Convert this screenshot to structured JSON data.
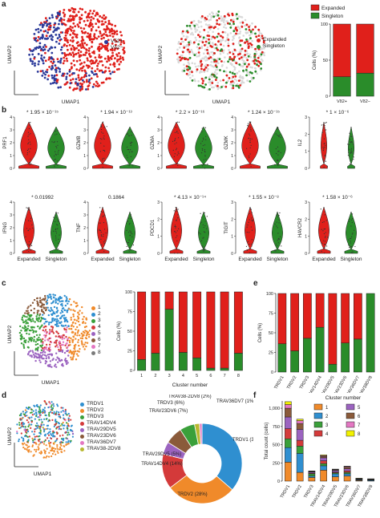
{
  "panels": {
    "a": "a",
    "b": "b",
    "c": "c",
    "d": "d",
    "e": "e",
    "f": "f"
  },
  "umap": {
    "xlabel": "UMAP1",
    "ylabel": "UMAP2"
  },
  "a_legend1": [
    {
      "label": "Vδ2+",
      "color": "#2b3a9a"
    },
    {
      "label": "Vδ2−",
      "color": "#e0201b"
    }
  ],
  "a_legend2": [
    {
      "label": "Expanded",
      "color": "#e0201b"
    },
    {
      "label": "Singleton",
      "color": "#2a8c2a"
    }
  ],
  "c_legend": [
    {
      "label": "1",
      "color": "#f08a2a"
    },
    {
      "label": "2",
      "color": "#2f8fd0"
    },
    {
      "label": "3",
      "color": "#3aa03a"
    },
    {
      "label": "4",
      "color": "#d43a3a"
    },
    {
      "label": "5",
      "color": "#9b63c0"
    },
    {
      "label": "6",
      "color": "#8a5a3a"
    },
    {
      "label": "7",
      "color": "#e377c2"
    },
    {
      "label": "8",
      "color": "#7a7a7a"
    }
  ],
  "d_legend": [
    {
      "label": "TRDV1",
      "color": "#2f8fd0"
    },
    {
      "label": "TRDV2",
      "color": "#f08a2a"
    },
    {
      "label": "TRDV3",
      "color": "#3aa03a"
    },
    {
      "label": "TRAV14DV4",
      "color": "#d43a3a"
    },
    {
      "label": "TRAV29DV5",
      "color": "#9b63c0"
    },
    {
      "label": "TRAV23DV6",
      "color": "#8a5a3a"
    },
    {
      "label": "TRAV36DV7",
      "color": "#e377c2"
    },
    {
      "label": "TRAV38-2DV8",
      "color": "#b8b830"
    }
  ],
  "violin": {
    "row1": [
      {
        "gene": "PRF1",
        "p": "* 1.95 × 10⁻¹⁵",
        "ymax": 4,
        "ticks": [
          0,
          1,
          2,
          3,
          4
        ]
      },
      {
        "gene": "GZMB",
        "p": "* 1.94 × 10⁻¹³",
        "ymax": 4,
        "ticks": [
          0,
          1,
          2,
          3,
          4
        ]
      },
      {
        "gene": "GZMA",
        "p": "* 2.2 × 10⁻¹⁶",
        "ymax": 4,
        "ticks": [
          0,
          1,
          2,
          3,
          4
        ]
      },
      {
        "gene": "GZMK",
        "p": "* 1.24 × 10⁻¹⁵",
        "ymax": 4,
        "ticks": [
          0,
          1,
          2,
          3,
          4
        ]
      },
      {
        "gene": "IL2",
        "p": "* 1 × 10⁻⁶",
        "ymax": 3,
        "ticks": [
          0,
          1,
          2,
          3
        ]
      }
    ],
    "row2": [
      {
        "gene": "IFNG",
        "p": "* 0.01992",
        "ymax": 4,
        "ticks": [
          0,
          1,
          2,
          3,
          4
        ]
      },
      {
        "gene": "TNF",
        "p": "0.1864",
        "ymax": 4,
        "ticks": [
          0,
          1,
          2,
          3,
          4
        ]
      },
      {
        "gene": "PDCD1",
        "p": "* 4.13 × 10⁻¹⁴",
        "ymax": 3,
        "ticks": [
          0,
          1,
          2,
          3
        ]
      },
      {
        "gene": "TIGIT",
        "p": "* 1.55 × 10⁻⁸",
        "ymax": 3,
        "ticks": [
          0,
          1,
          2,
          3
        ]
      },
      {
        "gene": "HAVCR2",
        "p": "* 1.58 × 10⁻⁶",
        "ymax": 3,
        "ticks": [
          0,
          1,
          2,
          3
        ]
      }
    ],
    "groups": [
      "Expanded",
      "Singleton"
    ]
  },
  "chart_data": [
    {
      "type": "bar",
      "id": "a_stack",
      "stacked": true,
      "categories": [
        "Vδ2+",
        "Vδ2−"
      ],
      "series": [
        {
          "name": "Singleton",
          "values": [
            27,
            32
          ],
          "color": "#2a8c2a"
        },
        {
          "name": "Expanded",
          "values": [
            73,
            68
          ],
          "color": "#e0201b"
        }
      ],
      "ylabel": "Cells (%)",
      "ylim": [
        0,
        100
      ],
      "yticks": [
        0,
        50,
        100
      ]
    },
    {
      "type": "bar",
      "id": "c_stack",
      "stacked": true,
      "categories": [
        "1",
        "2",
        "3",
        "4",
        "5",
        "6",
        "7",
        "8"
      ],
      "series": [
        {
          "name": "Singleton",
          "values": [
            14,
            22,
            78,
            23,
            16,
            3,
            3,
            22
          ],
          "color": "#2a8c2a"
        },
        {
          "name": "Expanded",
          "values": [
            86,
            78,
            22,
            77,
            84,
            97,
            97,
            78
          ],
          "color": "#e0201b"
        }
      ],
      "xlabel": "Cluster number",
      "ylabel": "Cells (%)",
      "ylim": [
        0,
        100
      ],
      "yticks": [
        0,
        25,
        50,
        75,
        100
      ]
    },
    {
      "type": "bar",
      "id": "e_stack",
      "stacked": true,
      "categories": [
        "TRDV1",
        "TRDV2",
        "TRDV3",
        "TRAV14DV4",
        "TRAV29DV5",
        "TRAV23DV6",
        "TRAV36DV7",
        "TRAV38DV8"
      ],
      "series": [
        {
          "name": "Singleton",
          "values": [
            36,
            27,
            43,
            57,
            10,
            37,
            42,
            100
          ],
          "color": "#2a8c2a"
        },
        {
          "name": "Expanded",
          "values": [
            64,
            73,
            57,
            43,
            90,
            63,
            58,
            0
          ],
          "color": "#e0201b"
        }
      ],
      "ylabel": "Cells (%)",
      "ylim": [
        0,
        100
      ],
      "yticks": [
        0,
        25,
        50,
        75,
        100
      ]
    },
    {
      "type": "pie",
      "id": "d_donut",
      "slices": [
        {
          "label": "TRDV1 (36%)",
          "value": 36,
          "color": "#2f8fd0"
        },
        {
          "label": "TRDV2 (28%)",
          "value": 28,
          "color": "#f08a2a"
        },
        {
          "label": "TRAV14DV4 (14%)",
          "value": 14,
          "color": "#d43a3a"
        },
        {
          "label": "TRAV29DV5 (5%)",
          "value": 5,
          "color": "#9b63c0"
        },
        {
          "label": "TRAV23DV6 (7%)",
          "value": 7,
          "color": "#8a5a3a"
        },
        {
          "label": "TRDV3 (6%)",
          "value": 6,
          "color": "#3aa03a"
        },
        {
          "label": "TRAV38-2DV8 (2%)",
          "value": 2,
          "color": "#b8b830"
        },
        {
          "label": "TRAV36DV7 (1%)",
          "value": 1,
          "color": "#e377c2"
        }
      ]
    },
    {
      "type": "bar",
      "id": "f_stack",
      "stacked": true,
      "title": "Cluster number",
      "categories": [
        "TRDV1",
        "TRDV2",
        "TRDV3",
        "TRAV14DV4",
        "TRAV29DV5",
        "TRAV23DV6",
        "TRAV36DV7",
        "TRAV38DV8"
      ],
      "series": [
        {
          "name": "1",
          "values": [
            260,
            120,
            50,
            150,
            60,
            70,
            10,
            5
          ],
          "color": "#f08a2a"
        },
        {
          "name": "2",
          "values": [
            200,
            260,
            20,
            60,
            40,
            30,
            8,
            10
          ],
          "color": "#2f8fd0"
        },
        {
          "name": "3",
          "values": [
            120,
            100,
            30,
            30,
            15,
            20,
            5,
            5
          ],
          "color": "#3aa03a"
        },
        {
          "name": "4",
          "values": [
            140,
            80,
            10,
            40,
            10,
            20,
            4,
            3
          ],
          "color": "#d43a3a"
        },
        {
          "name": "5",
          "values": [
            160,
            150,
            15,
            40,
            20,
            30,
            6,
            4
          ],
          "color": "#9b63c0"
        },
        {
          "name": "6",
          "values": [
            120,
            80,
            5,
            20,
            10,
            20,
            2,
            2
          ],
          "color": "#8a5a3a"
        },
        {
          "name": "7",
          "values": [
            50,
            40,
            5,
            10,
            5,
            10,
            2,
            1
          ],
          "color": "#e377c2"
        },
        {
          "name": "8",
          "values": [
            40,
            20,
            5,
            10,
            5,
            5,
            3,
            2
          ],
          "color": "#f2f200"
        }
      ],
      "ylabel": "Total count (cells)",
      "ylim": [
        0,
        1100
      ],
      "yticks": [
        0,
        250,
        500,
        750,
        "1,000"
      ]
    }
  ]
}
